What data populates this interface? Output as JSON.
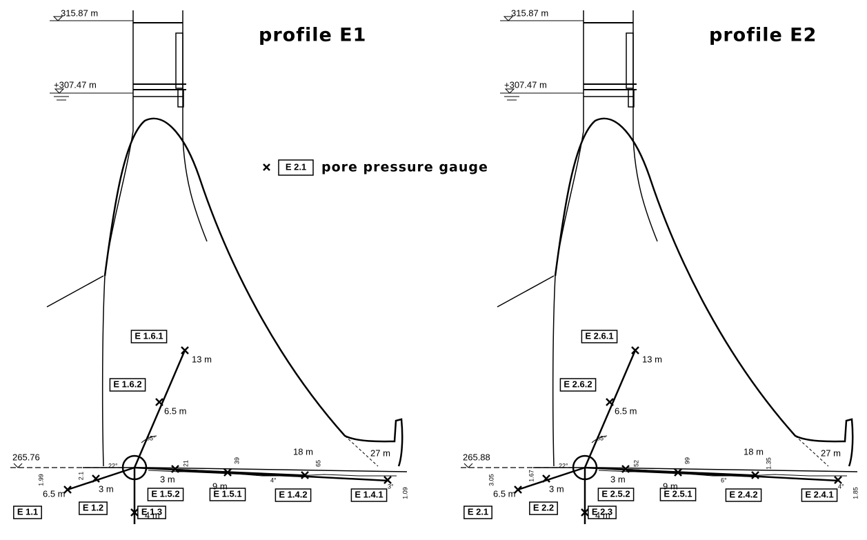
{
  "legend": {
    "gauge_label": "E 2.1",
    "text": "pore pressure gauge"
  },
  "profiles": [
    {
      "title": "profile E1",
      "crest_level": "315.87 m",
      "water_level": "+307.47 m",
      "foundation_level": "265.76",
      "gauges": [
        "E 1.1",
        "E 1.2",
        "E 1.3",
        "E 1.5.2",
        "E 1.5.1",
        "E 1.4.2",
        "E 1.4.1",
        "E 1.6.2",
        "E 1.6.1"
      ],
      "distances": [
        "6.5 m",
        "3 m",
        "4 m",
        "3 m",
        "9 m",
        "18 m",
        "27 m",
        "6.5 m",
        "13 m"
      ],
      "dimensions": [
        "1.99",
        "2.1",
        "21",
        "39",
        "65",
        "1.09"
      ],
      "angles": [
        "22°",
        "65°",
        "4°",
        "3°"
      ]
    },
    {
      "title": "profile E2",
      "crest_level": "315.87 m",
      "water_level": "+307.47 m",
      "foundation_level": "265.88",
      "gauges": [
        "E 2.1",
        "E 2.2",
        "E 2.3",
        "E 2.5.2",
        "E 2.5.1",
        "E 2.4.2",
        "E 2.4.1",
        "E 2.6.2",
        "E 2.6.1"
      ],
      "distances": [
        "6.5 m",
        "3 m",
        "4 m",
        "3 m",
        "9 m",
        "18 m",
        "27 m",
        "6.5 m",
        "13 m"
      ],
      "dimensions": [
        "3.05",
        "1.67",
        "52",
        "99",
        "1.35",
        "1.85"
      ],
      "angles": [
        "22°",
        "65°",
        "6°",
        "4°"
      ]
    }
  ]
}
